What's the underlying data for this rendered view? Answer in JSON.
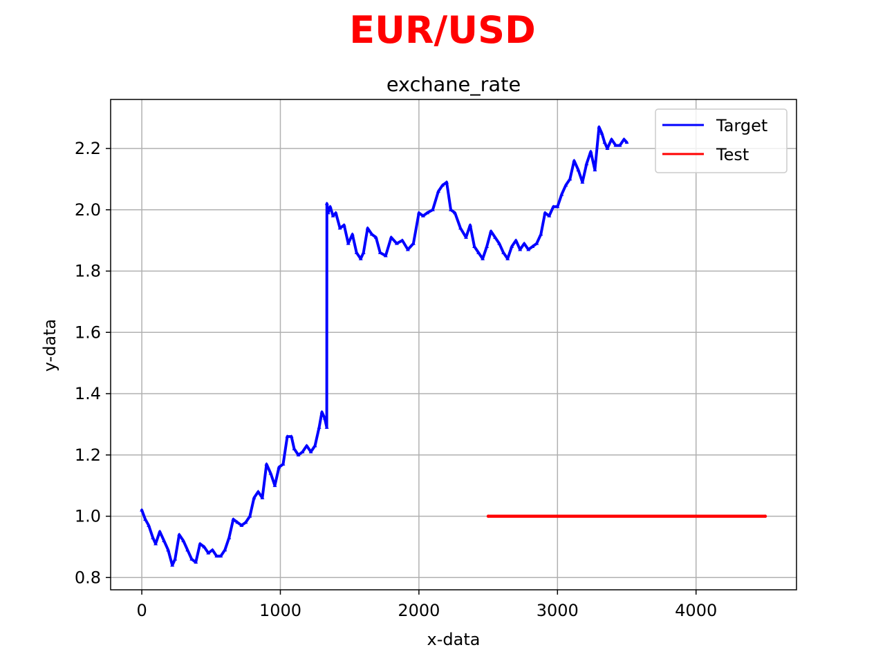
{
  "figure": {
    "suptitle": "EUR/USD",
    "suptitle_color": "#ff0000"
  },
  "chart_data": {
    "type": "line",
    "title": "exchane_rate",
    "xlabel": "x-data",
    "ylabel": "y-data",
    "xlim": [
      -225,
      4725
    ],
    "ylim": [
      0.76,
      2.36
    ],
    "xticks": [
      0,
      1000,
      2000,
      3000,
      4000
    ],
    "xtick_labels": [
      "0",
      "1000",
      "2000",
      "3000",
      "4000"
    ],
    "yticks": [
      0.8,
      1.0,
      1.2,
      1.4,
      1.6,
      1.8,
      2.0,
      2.2
    ],
    "ytick_labels": [
      "0.8",
      "1.0",
      "1.2",
      "1.4",
      "1.6",
      "1.8",
      "2.0",
      "2.2"
    ],
    "grid": true,
    "legend_position": "upper right",
    "series": [
      {
        "name": "Target",
        "color": "#0000ff",
        "marker": "triangle",
        "x": [
          0,
          25,
          50,
          80,
          100,
          130,
          160,
          190,
          220,
          240,
          270,
          300,
          330,
          360,
          390,
          420,
          450,
          480,
          510,
          540,
          570,
          600,
          630,
          660,
          690,
          720,
          750,
          780,
          810,
          840,
          870,
          900,
          930,
          960,
          990,
          1020,
          1050,
          1080,
          1100,
          1130,
          1160,
          1190,
          1220,
          1250,
          1280,
          1300,
          1320,
          1335,
          1336,
          1345,
          1360,
          1380,
          1400,
          1430,
          1460,
          1490,
          1520,
          1550,
          1580,
          1600,
          1630,
          1660,
          1690,
          1720,
          1760,
          1800,
          1840,
          1880,
          1920,
          1960,
          2000,
          2030,
          2060,
          2100,
          2140,
          2170,
          2200,
          2230,
          2260,
          2300,
          2340,
          2370,
          2400,
          2430,
          2460,
          2490,
          2520,
          2550,
          2580,
          2610,
          2640,
          2670,
          2700,
          2730,
          2760,
          2790,
          2820,
          2850,
          2880,
          2910,
          2940,
          2970,
          3000,
          3030,
          3060,
          3090,
          3120,
          3150,
          3180,
          3210,
          3240,
          3270,
          3300,
          3320,
          3340,
          3360,
          3390,
          3420,
          3450,
          3480,
          3500
        ],
        "y": [
          1.02,
          0.99,
          0.97,
          0.93,
          0.91,
          0.95,
          0.92,
          0.89,
          0.84,
          0.86,
          0.94,
          0.92,
          0.89,
          0.86,
          0.85,
          0.91,
          0.9,
          0.88,
          0.89,
          0.87,
          0.87,
          0.89,
          0.93,
          0.99,
          0.98,
          0.97,
          0.98,
          1.0,
          1.06,
          1.08,
          1.06,
          1.17,
          1.14,
          1.1,
          1.16,
          1.17,
          1.26,
          1.26,
          1.22,
          1.2,
          1.21,
          1.23,
          1.21,
          1.23,
          1.29,
          1.34,
          1.32,
          1.29,
          2.02,
          1.99,
          2.01,
          1.98,
          1.99,
          1.94,
          1.95,
          1.89,
          1.92,
          1.86,
          1.84,
          1.86,
          1.94,
          1.92,
          1.91,
          1.86,
          1.85,
          1.91,
          1.89,
          1.9,
          1.87,
          1.89,
          1.99,
          1.98,
          1.99,
          2.0,
          2.06,
          2.08,
          2.09,
          2.0,
          1.99,
          1.94,
          1.91,
          1.95,
          1.88,
          1.86,
          1.84,
          1.88,
          1.93,
          1.91,
          1.89,
          1.86,
          1.84,
          1.88,
          1.9,
          1.87,
          1.89,
          1.87,
          1.88,
          1.89,
          1.92,
          1.99,
          1.98,
          2.01,
          2.01,
          2.05,
          2.08,
          2.1,
          2.16,
          2.13,
          2.09,
          2.15,
          2.19,
          2.13,
          2.27,
          2.25,
          2.22,
          2.2,
          2.23,
          2.21,
          2.21,
          2.23,
          2.22
        ]
      },
      {
        "name": "Test",
        "color": "#ff0000",
        "marker": "point",
        "x": [
          2500,
          4500
        ],
        "y": [
          1.0,
          1.0
        ]
      }
    ]
  }
}
